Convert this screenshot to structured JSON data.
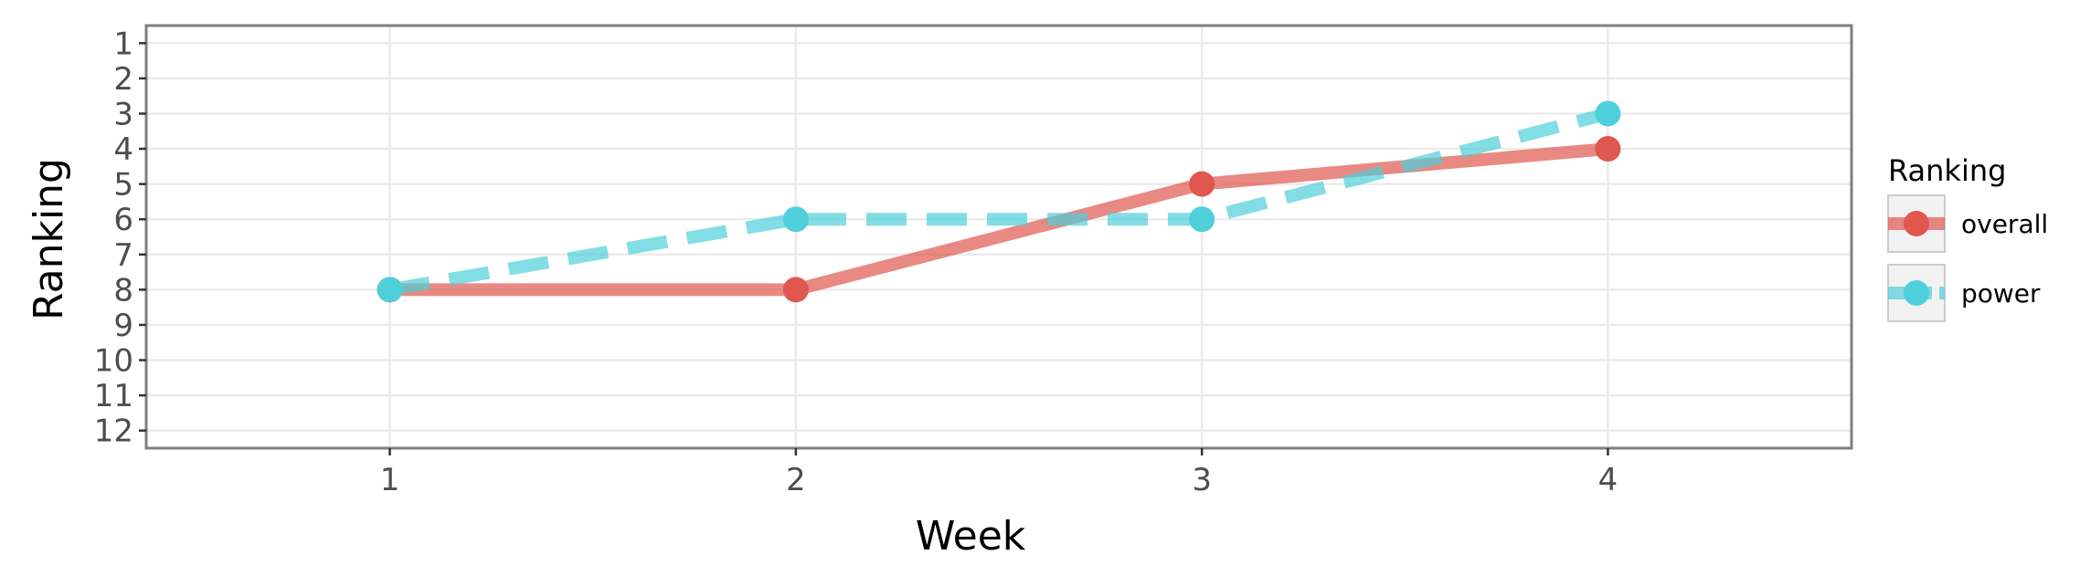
{
  "chart_data": {
    "type": "line",
    "title": "",
    "xlabel": "Week",
    "ylabel": "Ranking",
    "x": [
      1,
      2,
      3,
      4
    ],
    "xlim": [
      0.4,
      4.6
    ],
    "ylim": [
      12.5,
      0.5
    ],
    "y_reversed": true,
    "x_ticks": [
      "1",
      "2",
      "3",
      "4"
    ],
    "y_ticks": [
      "1",
      "2",
      "3",
      "4",
      "5",
      "6",
      "7",
      "8",
      "9",
      "10",
      "11",
      "12"
    ],
    "grid": true,
    "legend": {
      "title": "Ranking",
      "placement": "right"
    },
    "series": [
      {
        "name": "overall",
        "values": [
          8,
          8,
          5,
          4
        ],
        "color": "#e0574f",
        "line_style": "solid"
      },
      {
        "name": "power",
        "values": [
          8,
          6,
          6,
          3
        ],
        "color": "#4fcfd9",
        "line_style": "dashed"
      }
    ]
  }
}
